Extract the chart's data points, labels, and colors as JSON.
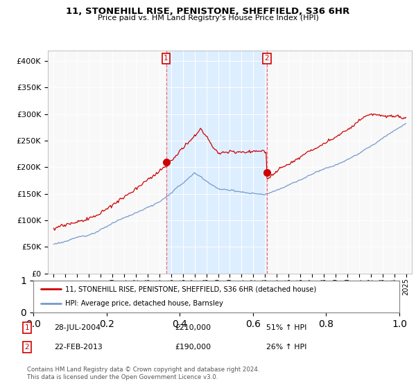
{
  "title": "11, STONEHILL RISE, PENISTONE, SHEFFIELD, S36 6HR",
  "subtitle": "Price paid vs. HM Land Registry's House Price Index (HPI)",
  "legend_label_red": "11, STONEHILL RISE, PENISTONE, SHEFFIELD, S36 6HR (detached house)",
  "legend_label_blue": "HPI: Average price, detached house, Barnsley",
  "point1_date": "28-JUL-2004",
  "point1_price": "£210,000",
  "point1_hpi": "51% ↑ HPI",
  "point2_date": "22-FEB-2013",
  "point2_price": "£190,000",
  "point2_hpi": "26% ↑ HPI",
  "footer": "Contains HM Land Registry data © Crown copyright and database right 2024.\nThis data is licensed under the Open Government Licence v3.0.",
  "red_color": "#cc0000",
  "blue_color": "#7799cc",
  "shade_color": "#ddeeff",
  "dashed_color": "#ff6666",
  "point1_x_year": 2004.57,
  "point2_x_year": 2013.14,
  "p1_y": 210000,
  "p2_y": 190000,
  "background_plot": "#f8f8f8",
  "ylim": [
    0,
    420000
  ],
  "xlim_start": 1994.5,
  "xlim_end": 2025.5
}
